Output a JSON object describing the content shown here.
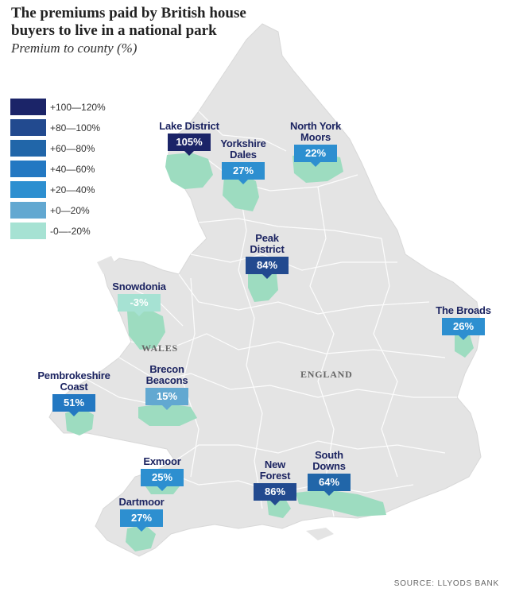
{
  "title": "The premiums paid by British house buyers to live in a national park",
  "subtitle": "Premium to county (%)",
  "legend": [
    {
      "label": "+100—120%",
      "color": "#1b2468"
    },
    {
      "label": "+80—100%",
      "color": "#224a8f"
    },
    {
      "label": "+60—80%",
      "color": "#2166a9"
    },
    {
      "label": "+40—60%",
      "color": "#2378c2"
    },
    {
      "label": "+20—40%",
      "color": "#2d8fd0"
    },
    {
      "label": "+0—20%",
      "color": "#62a8d1"
    },
    {
      "label": "-0—-20%",
      "color": "#a6e2d3"
    }
  ],
  "parks": [
    {
      "name": "Lake District",
      "value": "105%",
      "color": "#1b2468"
    },
    {
      "name": "Yorkshire\nDales",
      "value": "27%",
      "color": "#2d8fd0"
    },
    {
      "name": "North York\nMoors",
      "value": "22%",
      "color": "#2d8fd0"
    },
    {
      "name": "Peak\nDistrict",
      "value": "84%",
      "color": "#224a8f"
    },
    {
      "name": "Snowdonia",
      "value": "-3%",
      "color": "#a6e2d3"
    },
    {
      "name": "The Broads",
      "value": "26%",
      "color": "#2d8fd0"
    },
    {
      "name": "Pembrokeshire\nCoast",
      "value": "51%",
      "color": "#2378c2"
    },
    {
      "name": "Brecon\nBeacons",
      "value": "15%",
      "color": "#62a8d1"
    },
    {
      "name": "Exmoor",
      "value": "25%",
      "color": "#2d8fd0"
    },
    {
      "name": "New\nForest",
      "value": "86%",
      "color": "#224a8f"
    },
    {
      "name": "South\nDowns",
      "value": "64%",
      "color": "#2166a9"
    },
    {
      "name": "Dartmoor",
      "value": "27%",
      "color": "#2d8fd0"
    }
  ],
  "regions": {
    "wales": "WALES",
    "england": "ENGLAND"
  },
  "source": "SOURCE: LLYODS BANK",
  "colors": {
    "land": "#e4e4e4",
    "border": "#ffffff",
    "park_fill": "#9ddcc0"
  }
}
